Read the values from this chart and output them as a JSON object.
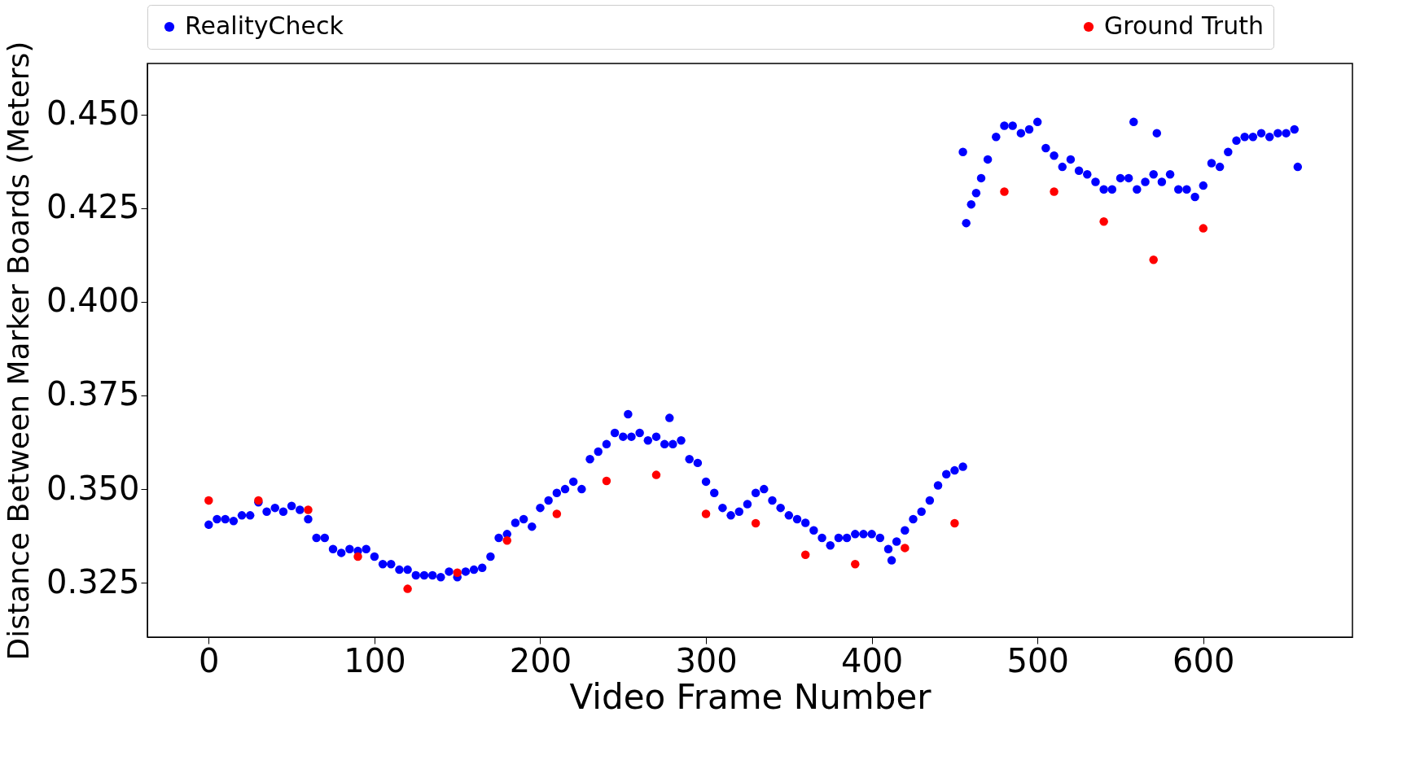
{
  "chart_data": {
    "type": "scatter",
    "xlabel": "Video Frame Number",
    "ylabel": "Distance Between Marker Boards (Meters)",
    "xlim": [
      -37,
      690
    ],
    "ylim": [
      0.3105,
      0.4636
    ],
    "xticks": [
      0,
      100,
      200,
      300,
      400,
      500,
      600
    ],
    "yticks": [
      0.325,
      {
        "value": 0.35,
        "label": "0.350"
      },
      0.375,
      {
        "value": 0.4,
        "label": "0.400"
      },
      0.425,
      {
        "value": 0.45,
        "label": "0.450"
      }
    ],
    "grid": false,
    "legend": "top",
    "marker": "circle",
    "series": [
      {
        "name": "RealityCheck",
        "color": "#0000ff",
        "x": [
          0,
          5,
          10,
          15,
          20,
          25,
          30,
          35,
          40,
          45,
          50,
          55,
          60,
          65,
          70,
          75,
          80,
          85,
          90,
          95,
          100,
          105,
          110,
          115,
          120,
          125,
          130,
          135,
          140,
          145,
          150,
          155,
          160,
          165,
          170,
          175,
          180,
          185,
          190,
          195,
          200,
          205,
          210,
          215,
          220,
          225,
          230,
          235,
          240,
          245,
          250,
          253,
          255,
          260,
          265,
          270,
          275,
          278,
          280,
          285,
          290,
          295,
          300,
          305,
          310,
          315,
          320,
          325,
          330,
          335,
          340,
          345,
          350,
          355,
          360,
          365,
          370,
          375,
          380,
          385,
          390,
          395,
          400,
          405,
          410,
          412,
          415,
          420,
          425,
          430,
          435,
          440,
          445,
          450,
          455,
          455,
          457,
          460,
          463,
          466,
          470,
          475,
          480,
          485,
          490,
          495,
          500,
          505,
          510,
          515,
          520,
          525,
          530,
          535,
          540,
          545,
          550,
          555,
          558,
          560,
          565,
          570,
          572,
          575,
          580,
          585,
          590,
          595,
          600,
          605,
          610,
          615,
          620,
          625,
          630,
          635,
          640,
          645,
          650,
          655,
          657
        ],
        "values": [
          0.3405,
          0.342,
          0.342,
          0.3415,
          0.343,
          0.343,
          0.3465,
          0.344,
          0.345,
          0.344,
          0.3455,
          0.3445,
          0.342,
          0.337,
          0.337,
          0.334,
          0.333,
          0.334,
          0.3335,
          0.334,
          0.332,
          0.33,
          0.33,
          0.3285,
          0.3285,
          0.327,
          0.327,
          0.327,
          0.3265,
          0.328,
          0.3265,
          0.328,
          0.3285,
          0.329,
          0.332,
          0.337,
          0.338,
          0.341,
          0.342,
          0.34,
          0.345,
          0.347,
          0.349,
          0.35,
          0.352,
          0.35,
          0.358,
          0.36,
          0.362,
          0.365,
          0.364,
          0.37,
          0.364,
          0.365,
          0.363,
          0.364,
          0.362,
          0.369,
          0.362,
          0.363,
          0.358,
          0.357,
          0.352,
          0.349,
          0.345,
          0.343,
          0.344,
          0.346,
          0.349,
          0.35,
          0.347,
          0.345,
          0.343,
          0.342,
          0.341,
          0.339,
          0.337,
          0.335,
          0.337,
          0.337,
          0.338,
          0.338,
          0.338,
          0.337,
          0.334,
          0.331,
          0.336,
          0.339,
          0.342,
          0.344,
          0.347,
          0.351,
          0.354,
          0.355,
          0.356,
          0.44,
          0.421,
          0.426,
          0.429,
          0.433,
          0.438,
          0.444,
          0.447,
          0.447,
          0.445,
          0.446,
          0.448,
          0.441,
          0.439,
          0.436,
          0.438,
          0.435,
          0.434,
          0.432,
          0.43,
          0.43,
          0.433,
          0.433,
          0.448,
          0.43,
          0.432,
          0.434,
          0.445,
          0.432,
          0.434,
          0.43,
          0.43,
          0.428,
          0.431,
          0.437,
          0.436,
          0.44,
          0.443,
          0.444,
          0.444,
          0.445,
          0.444,
          0.445,
          0.445,
          0.446,
          0.436
        ]
      },
      {
        "name": "Ground Truth",
        "color": "#ff0000",
        "x": [
          0,
          30,
          60,
          90,
          120,
          150,
          180,
          210,
          240,
          270,
          300,
          330,
          360,
          390,
          420,
          450,
          480,
          510,
          540,
          570,
          600
        ],
        "values": [
          0.347,
          0.347,
          0.3445,
          0.332,
          0.3234,
          0.3277,
          0.3363,
          0.3434,
          0.3522,
          0.3538,
          0.3434,
          0.3409,
          0.3325,
          0.33,
          0.3343,
          0.3409,
          0.4294,
          0.4294,
          0.4214,
          0.4112,
          0.4196
        ]
      }
    ]
  }
}
